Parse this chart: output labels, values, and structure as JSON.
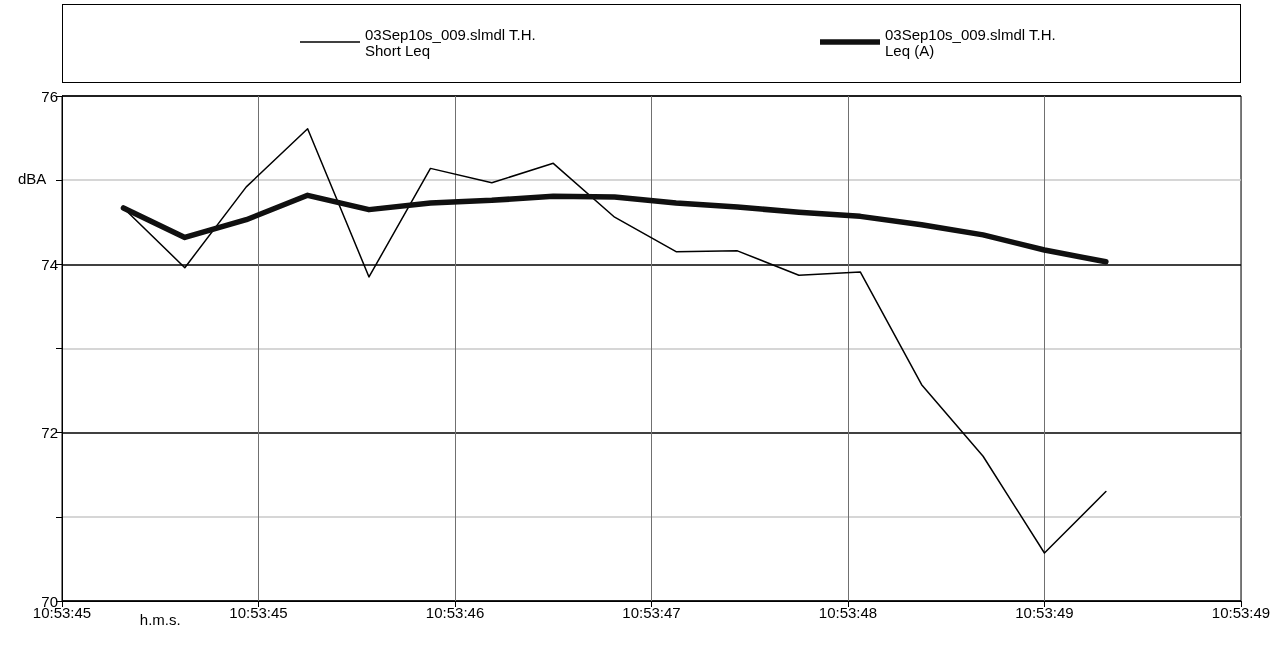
{
  "chart_data": {
    "type": "line",
    "xlabel": "h.m.s.",
    "ylabel": "dBA",
    "xlim": [
      10.8957222,
      10.8970556
    ],
    "xticks": [
      {
        "value": 10.8957222,
        "label": "10:53:45"
      },
      {
        "value": 10.8959444,
        "label": "10:53:45"
      },
      {
        "value": 10.8961667,
        "label": "10:53:46"
      },
      {
        "value": 10.8963889,
        "label": "10:53:47"
      },
      {
        "value": 10.8966111,
        "label": "10:53:48"
      },
      {
        "value": 10.8968333,
        "label": "10:53:49"
      },
      {
        "value": 10.8970556,
        "label": "10:53:49"
      }
    ],
    "ylim": [
      70,
      76
    ],
    "yticks": [
      70,
      {
        "value": 71,
        "label": null
      },
      72,
      {
        "value": 73,
        "label": null
      },
      74,
      {
        "value": 75,
        "label": null
      },
      76
    ],
    "x": [
      10.8957917,
      10.8958611,
      10.8959306,
      10.896,
      10.8960694,
      10.8961389,
      10.8962083,
      10.8962778,
      10.8963472,
      10.8964167,
      10.8964861,
      10.8965556,
      10.896625,
      10.8966944,
      10.8967639,
      10.8968333,
      10.8969028
    ],
    "grid": true,
    "legend": "top",
    "marker": "none",
    "line_style": "solid",
    "series": [
      {
        "name": "03Sep10s_009.slmdl T.H.\nShort Leq",
        "color": "#000000",
        "values": [
          74.67,
          73.96,
          74.92,
          75.61,
          73.85,
          75.14,
          74.97,
          75.2,
          74.56,
          74.15,
          74.16,
          73.87,
          73.91,
          72.57,
          71.72,
          70.57,
          71.3
        ]
      },
      {
        "name": "03Sep10s_009.slmdl T.H.\nLeq (A)",
        "color": "#101010",
        "values": [
          74.67,
          74.32,
          74.53,
          74.82,
          74.65,
          74.73,
          74.76,
          74.81,
          74.8,
          74.73,
          74.68,
          74.62,
          74.57,
          74.47,
          74.35,
          74.17,
          74.03
        ]
      }
    ]
  }
}
